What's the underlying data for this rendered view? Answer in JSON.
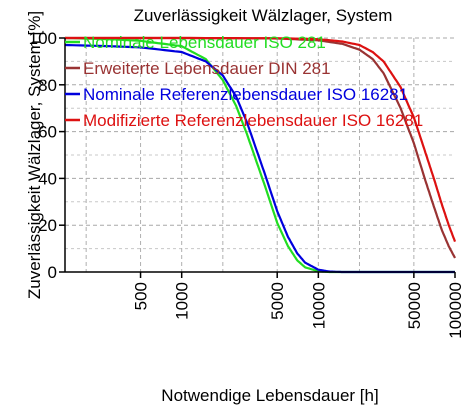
{
  "chart_data": {
    "type": "line",
    "title": "Zuverlässigkeit Wälzlager, System",
    "xlabel": "Notwendige Lebensdauer [h]",
    "ylabel": "Zuverlässigkeit Wälzlager, System [%]",
    "xscale": "log",
    "xlim": [
      140,
      100000
    ],
    "ylim": [
      0,
      100
    ],
    "x_ticks": [
      500,
      1000,
      5000,
      10000,
      50000,
      100000
    ],
    "x_tick_labels": [
      "500",
      "1000",
      "5000",
      "10000",
      "50000",
      "100000"
    ],
    "y_ticks": [
      0,
      20,
      40,
      60,
      80,
      100
    ],
    "y_tick_labels": [
      "0",
      "20",
      "40",
      "60",
      "80",
      "100"
    ],
    "grid": true,
    "legend_position": "top-left, inside plot",
    "series": [
      {
        "name": "Nominale Lebensdauer ISO 281",
        "color": "#22dd22",
        "x": [
          140,
          300,
          500,
          1000,
          1500,
          2000,
          2500,
          3000,
          4000,
          5000,
          6000,
          7000,
          8000,
          10000,
          12000,
          15000,
          20000,
          100000
        ],
        "y": [
          100,
          99.5,
          98.8,
          96.5,
          91,
          82,
          71,
          59,
          38,
          21,
          11,
          5,
          2,
          0.3,
          0,
          0,
          0,
          0
        ]
      },
      {
        "name": "Erweiterte Lebensdauer DIN 281",
        "color": "#993333",
        "x": [
          140,
          1000,
          5000,
          10000,
          15000,
          20000,
          25000,
          30000,
          40000,
          50000,
          60000,
          70000,
          80000,
          90000,
          100000
        ],
        "y": [
          100,
          100,
          99.8,
          99,
          97.5,
          95,
          91,
          85,
          70,
          55,
          40,
          28,
          18,
          11,
          6
        ]
      },
      {
        "name": "Nominale Referenzlebensdauer ISO 16281",
        "color": "#0000dd",
        "x": [
          140,
          300,
          500,
          1000,
          1500,
          2000,
          2500,
          3000,
          4000,
          5000,
          6000,
          7000,
          8000,
          10000,
          12000,
          15000,
          20000,
          100000
        ],
        "y": [
          97,
          96.5,
          96,
          94,
          90,
          84,
          75,
          64,
          43,
          26,
          15,
          8,
          4,
          1,
          0.2,
          0,
          0,
          0
        ]
      },
      {
        "name": "Modifizierte Referenzlebensdauer ISO 16281",
        "color": "#dd1111",
        "x": [
          140,
          1000,
          5000,
          10000,
          15000,
          20000,
          25000,
          30000,
          40000,
          50000,
          60000,
          70000,
          80000,
          90000,
          100000
        ],
        "y": [
          100,
          100,
          99.9,
          99.5,
          98.5,
          97,
          94,
          90,
          79,
          66,
          52,
          40,
          29,
          20,
          13
        ]
      }
    ]
  }
}
